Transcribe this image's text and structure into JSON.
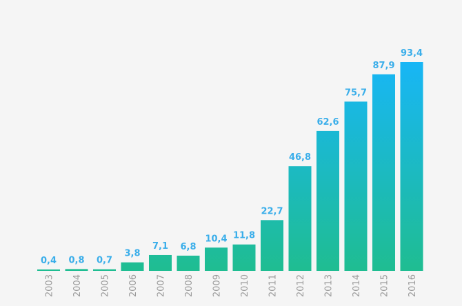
{
  "chart_data": {
    "type": "bar",
    "categories": [
      "2003",
      "2004",
      "2005",
      "2006",
      "2007",
      "2008",
      "2009",
      "2010",
      "2011",
      "2012",
      "2013",
      "2014",
      "2015",
      "2016"
    ],
    "values": [
      0.4,
      0.8,
      0.7,
      3.8,
      7.1,
      6.8,
      10.4,
      11.8,
      22.7,
      46.8,
      62.6,
      75.7,
      87.9,
      93.4
    ],
    "value_labels": [
      "0,4",
      "0,8",
      "0,7",
      "3,8",
      "7,1",
      "6,8",
      "10,4",
      "11,8",
      "22,7",
      "46,8",
      "62,6",
      "75,7",
      "87,9",
      "93,4"
    ],
    "title": "",
    "xlabel": "",
    "ylabel": "",
    "ylim": [
      0,
      93.4
    ],
    "grid": false,
    "legend": "none"
  },
  "colors": {
    "background": "#f5f5f5",
    "bar_bottom": "#1fbd92",
    "bar_top": "#18b6f6",
    "value_label": "#3aaeea",
    "tick_label": "#9a9a9a",
    "baseline": "#d0d0d0"
  }
}
